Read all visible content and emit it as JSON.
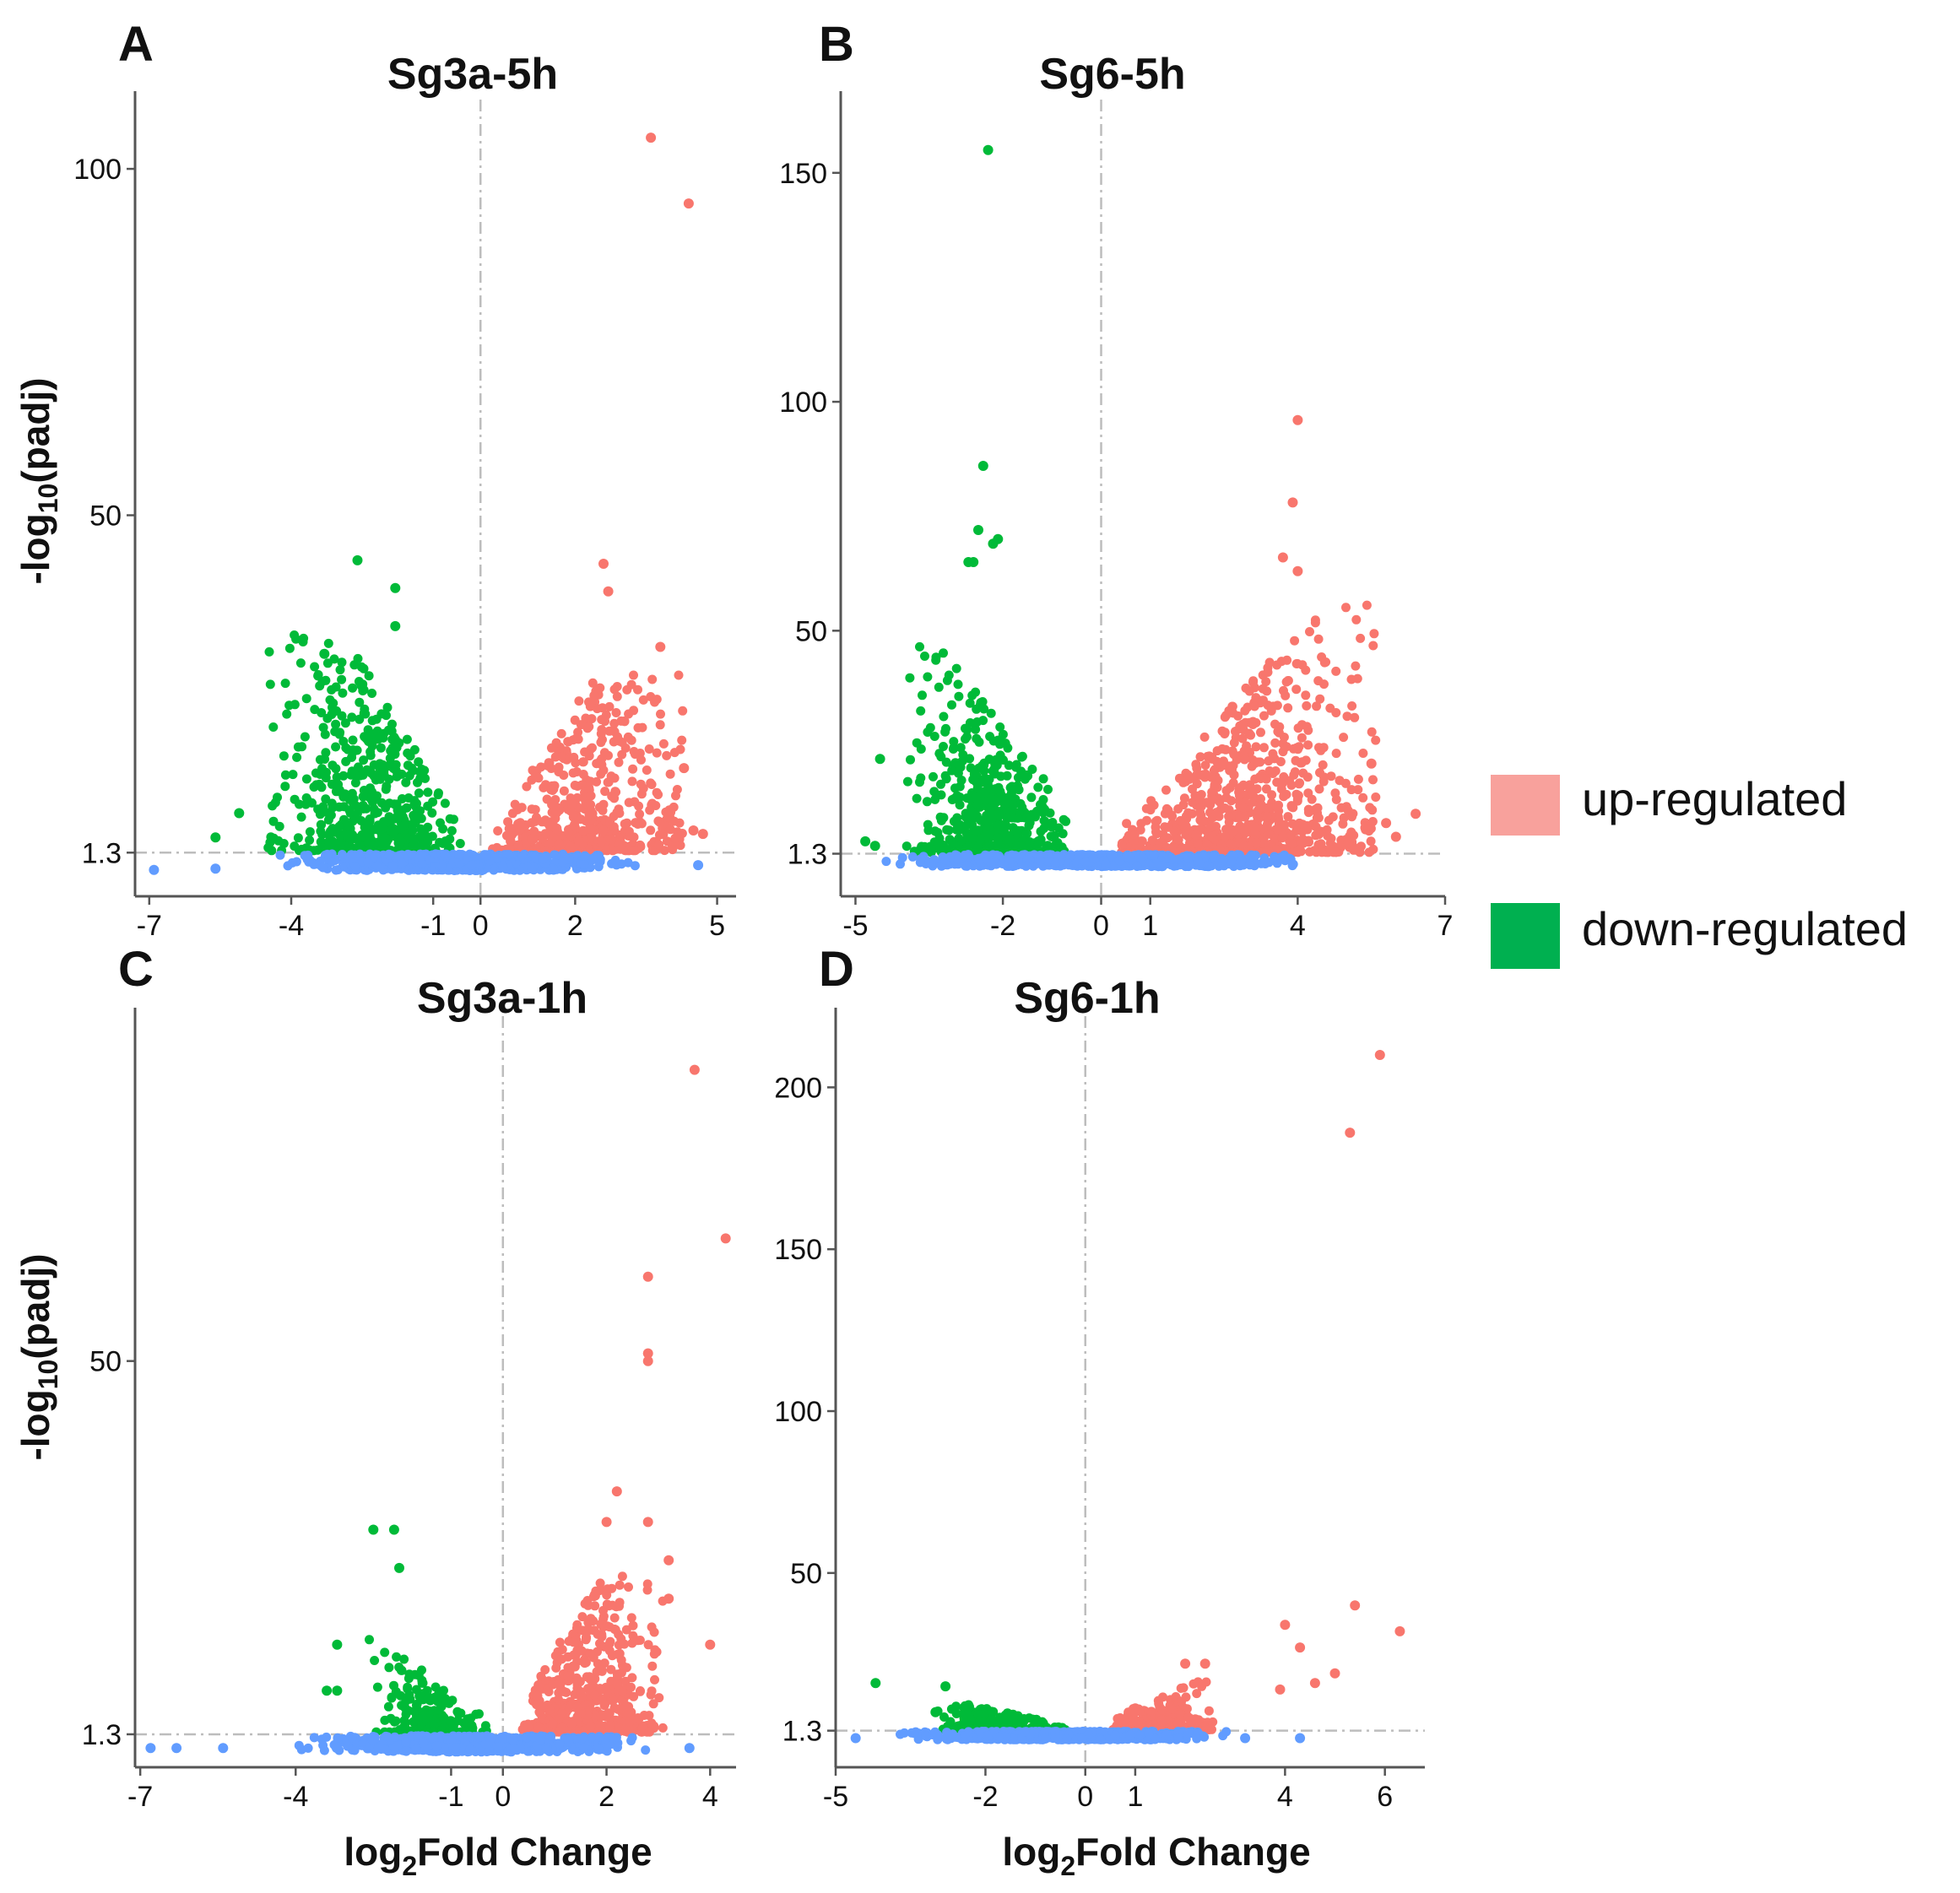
{
  "figure": {
    "legend": [
      {
        "label": "up-regulated",
        "color": "#f8a19c"
      },
      {
        "label": "down-regulated",
        "color": "#00b050"
      }
    ],
    "colors": {
      "up": "#f8766d",
      "down": "#00ba38",
      "ns": "#619cff",
      "guide": "#bdbdbd",
      "axis": "#555555"
    }
  },
  "chart_data": [
    {
      "id": "A",
      "type": "scatter",
      "panel_letter": "A",
      "title": "Sg3a-5h",
      "xlabel_main": "log",
      "xlabel_sub": "2",
      "xlabel_rest": "Fold Change",
      "ylabel_main": "-log",
      "ylabel_sub": "10",
      "ylabel_rest": "(padj)",
      "xlim": [
        -7.3,
        5.4
      ],
      "ylim": [
        -5,
        110
      ],
      "xticks": [
        -7,
        -4,
        -1,
        0,
        2,
        5
      ],
      "yticks": [
        1.3,
        50,
        100
      ],
      "threshold_y": 1.3,
      "highlights": [
        {
          "x": 3.6,
          "y": 104.5,
          "group": "up"
        },
        {
          "x": 4.4,
          "y": 95,
          "group": "up"
        },
        {
          "x": 2.6,
          "y": 43,
          "group": "up"
        },
        {
          "x": 2.7,
          "y": 39,
          "group": "up"
        },
        {
          "x": 3.8,
          "y": 31,
          "group": "up"
        },
        {
          "x": 4.3,
          "y": 13.5,
          "group": "up"
        },
        {
          "x": 4.5,
          "y": 4.5,
          "group": "up"
        },
        {
          "x": 4.7,
          "y": 4,
          "group": "up"
        },
        {
          "x": -2.6,
          "y": 43.5,
          "group": "down"
        },
        {
          "x": -1.8,
          "y": 39.5,
          "group": "down"
        },
        {
          "x": -1.8,
          "y": 34,
          "group": "down"
        },
        {
          "x": -3.3,
          "y": 30,
          "group": "down"
        },
        {
          "x": -5.6,
          "y": 3.5,
          "group": "down"
        },
        {
          "x": -5.1,
          "y": 7,
          "group": "down"
        },
        {
          "x": -6.9,
          "y": -1.2,
          "group": "ns"
        },
        {
          "x": -5.6,
          "y": -1,
          "group": "ns"
        },
        {
          "x": 4.6,
          "y": -0.5,
          "group": "ns"
        }
      ],
      "clouds": [
        {
          "group": "down",
          "xmin": -4.5,
          "xmax": -0.4,
          "ymin": 1.6,
          "ymax": 33,
          "n": 520,
          "seed": 11,
          "peak": -1.6,
          "skew": 2.2
        },
        {
          "group": "up",
          "xmin": 0.25,
          "xmax": 4.3,
          "ymin": 1.6,
          "ymax": 27,
          "n": 560,
          "seed": 13,
          "peak": 1.2,
          "skew": 2.4
        },
        {
          "group": "ns",
          "xmin": -4.6,
          "xmax": 3.8,
          "ymin": -1.3,
          "ymax": 1.1,
          "n": 700,
          "seed": 17,
          "peak": 0,
          "skew": 1
        }
      ]
    },
    {
      "id": "B",
      "type": "scatter",
      "panel_letter": "B",
      "title": "Sg6-5h",
      "xlabel_main": "log",
      "xlabel_sub": "2",
      "xlabel_rest": "Fold Change",
      "ylabel_main": "-log",
      "ylabel_sub": "10",
      "ylabel_rest": "(padj)",
      "xlim": [
        -5.3,
        7.0
      ],
      "ylim": [
        -8,
        166
      ],
      "xticks": [
        -5,
        -2,
        0,
        1,
        4,
        7
      ],
      "yticks": [
        1.3,
        50,
        100,
        150
      ],
      "threshold_y": 1.3,
      "highlights": [
        {
          "x": -2.3,
          "y": 155,
          "group": "down"
        },
        {
          "x": -2.4,
          "y": 86,
          "group": "down"
        },
        {
          "x": -2.5,
          "y": 72,
          "group": "down"
        },
        {
          "x": -2.1,
          "y": 70,
          "group": "down"
        },
        {
          "x": -2.2,
          "y": 69,
          "group": "down"
        },
        {
          "x": -2.7,
          "y": 65,
          "group": "down"
        },
        {
          "x": -2.6,
          "y": 65,
          "group": "down"
        },
        {
          "x": -4.5,
          "y": 22,
          "group": "down"
        },
        {
          "x": -4.8,
          "y": 4,
          "group": "down"
        },
        {
          "x": -4.6,
          "y": 3,
          "group": "down"
        },
        {
          "x": 4.0,
          "y": 96,
          "group": "up"
        },
        {
          "x": 3.9,
          "y": 78,
          "group": "up"
        },
        {
          "x": 3.7,
          "y": 66,
          "group": "up"
        },
        {
          "x": 4.0,
          "y": 63,
          "group": "up"
        },
        {
          "x": 6.4,
          "y": 10,
          "group": "up"
        },
        {
          "x": 5.8,
          "y": 8,
          "group": "up"
        },
        {
          "x": 5.5,
          "y": 21,
          "group": "up"
        },
        {
          "x": 6.0,
          "y": 5,
          "group": "up"
        }
      ],
      "clouds": [
        {
          "group": "down",
          "xmin": -4.0,
          "xmax": -0.6,
          "ymin": 1.6,
          "ymax": 58,
          "n": 560,
          "seed": 21,
          "peak": -1.9,
          "skew": 2.6
        },
        {
          "group": "up",
          "xmin": 0.4,
          "xmax": 5.6,
          "ymin": 1.6,
          "ymax": 60,
          "n": 900,
          "seed": 23,
          "peak": 2.2,
          "skew": 2.6
        },
        {
          "group": "ns",
          "xmin": -4.8,
          "xmax": 4.7,
          "ymin": -1.5,
          "ymax": 1.1,
          "n": 800,
          "seed": 27,
          "peak": 0,
          "skew": 1
        }
      ]
    },
    {
      "id": "C",
      "type": "scatter",
      "panel_letter": "C",
      "title": "Sg3a-1h",
      "xlabel_main": "log",
      "xlabel_sub": "2",
      "xlabel_rest": "Fold Change",
      "ylabel_main": "-log",
      "ylabel_sub": "10",
      "ylabel_rest": "(padj)",
      "xlim": [
        -7.1,
        4.5
      ],
      "ylim": [
        -3,
        95
      ],
      "xticks": [
        -7,
        -4,
        -1,
        0,
        2,
        4
      ],
      "yticks": [
        1.3,
        50
      ],
      "threshold_y": 1.3,
      "highlights": [
        {
          "x": 3.7,
          "y": 88,
          "group": "up"
        },
        {
          "x": 4.3,
          "y": 66,
          "group": "up"
        },
        {
          "x": 2.8,
          "y": 61,
          "group": "up"
        },
        {
          "x": 2.8,
          "y": 51,
          "group": "up"
        },
        {
          "x": 2.8,
          "y": 50,
          "group": "up"
        },
        {
          "x": 2.2,
          "y": 33,
          "group": "up"
        },
        {
          "x": 2.0,
          "y": 29,
          "group": "up"
        },
        {
          "x": 2.8,
          "y": 29,
          "group": "up"
        },
        {
          "x": 3.2,
          "y": 24,
          "group": "up"
        },
        {
          "x": 3.2,
          "y": 19,
          "group": "up"
        },
        {
          "x": 4.0,
          "y": 13,
          "group": "up"
        },
        {
          "x": -2.5,
          "y": 28,
          "group": "down"
        },
        {
          "x": -2.1,
          "y": 28,
          "group": "down"
        },
        {
          "x": -2.0,
          "y": 23,
          "group": "down"
        },
        {
          "x": -3.2,
          "y": 13,
          "group": "down"
        },
        {
          "x": -3.2,
          "y": 7,
          "group": "down"
        },
        {
          "x": -3.4,
          "y": 7,
          "group": "down"
        },
        {
          "x": -6.8,
          "y": -0.5,
          "group": "ns"
        },
        {
          "x": -6.3,
          "y": -0.5,
          "group": "ns"
        },
        {
          "x": -5.4,
          "y": -0.5,
          "group": "ns"
        },
        {
          "x": 3.6,
          "y": -0.5,
          "group": "ns"
        }
      ],
      "clouds": [
        {
          "group": "down",
          "xmin": -2.6,
          "xmax": -0.3,
          "ymin": 1.6,
          "ymax": 14,
          "n": 200,
          "seed": 31,
          "peak": -1.2,
          "skew": 2.4
        },
        {
          "group": "up",
          "xmin": 0.3,
          "xmax": 3.1,
          "ymin": 1.6,
          "ymax": 22,
          "n": 520,
          "seed": 33,
          "peak": 1.0,
          "skew": 2.3
        },
        {
          "group": "ns",
          "xmin": -4.6,
          "xmax": 3.3,
          "ymin": -1.0,
          "ymax": 1.1,
          "n": 650,
          "seed": 37,
          "peak": 0,
          "skew": 1
        }
      ]
    },
    {
      "id": "D",
      "type": "scatter",
      "panel_letter": "D",
      "title": "Sg6-1h",
      "xlabel_main": "log",
      "xlabel_sub": "2",
      "xlabel_rest": "Fold Change",
      "ylabel_main": "-log",
      "ylabel_sub": "10",
      "ylabel_rest": "(padj)",
      "xlim": [
        -5.0,
        6.8
      ],
      "ylim": [
        -10,
        222
      ],
      "xticks": [
        -5,
        -2,
        0,
        1,
        4,
        6
      ],
      "yticks": [
        1.3,
        50,
        100,
        150,
        200
      ],
      "threshold_y": 1.3,
      "highlights": [
        {
          "x": 5.9,
          "y": 210,
          "group": "up"
        },
        {
          "x": 5.3,
          "y": 186,
          "group": "up"
        },
        {
          "x": 5.4,
          "y": 40,
          "group": "up"
        },
        {
          "x": 6.3,
          "y": 32,
          "group": "up"
        },
        {
          "x": 4.0,
          "y": 34,
          "group": "up"
        },
        {
          "x": 4.3,
          "y": 27,
          "group": "up"
        },
        {
          "x": 5.0,
          "y": 19,
          "group": "up"
        },
        {
          "x": 4.6,
          "y": 16,
          "group": "up"
        },
        {
          "x": 3.9,
          "y": 14,
          "group": "up"
        },
        {
          "x": 2.0,
          "y": 22,
          "group": "up"
        },
        {
          "x": 2.4,
          "y": 22,
          "group": "up"
        },
        {
          "x": -4.2,
          "y": 16,
          "group": "down"
        },
        {
          "x": -2.8,
          "y": 15,
          "group": "down"
        },
        {
          "x": -3.0,
          "y": 7,
          "group": "down"
        },
        {
          "x": -4.6,
          "y": -1,
          "group": "ns"
        },
        {
          "x": 3.2,
          "y": -1,
          "group": "ns"
        },
        {
          "x": 4.3,
          "y": -1,
          "group": "ns"
        }
      ],
      "clouds": [
        {
          "group": "down",
          "xmin": -3.0,
          "xmax": -0.4,
          "ymin": 1.6,
          "ymax": 12,
          "n": 200,
          "seed": 41,
          "peak": -1.5,
          "skew": 2.5
        },
        {
          "group": "up",
          "xmin": 0.4,
          "xmax": 2.6,
          "ymin": 1.6,
          "ymax": 18,
          "n": 260,
          "seed": 43,
          "peak": 1.1,
          "skew": 2.6
        },
        {
          "group": "ns",
          "xmin": -4.0,
          "xmax": 3.3,
          "ymin": -1.5,
          "ymax": 1.1,
          "n": 700,
          "seed": 47,
          "peak": 0,
          "skew": 1
        }
      ]
    }
  ]
}
